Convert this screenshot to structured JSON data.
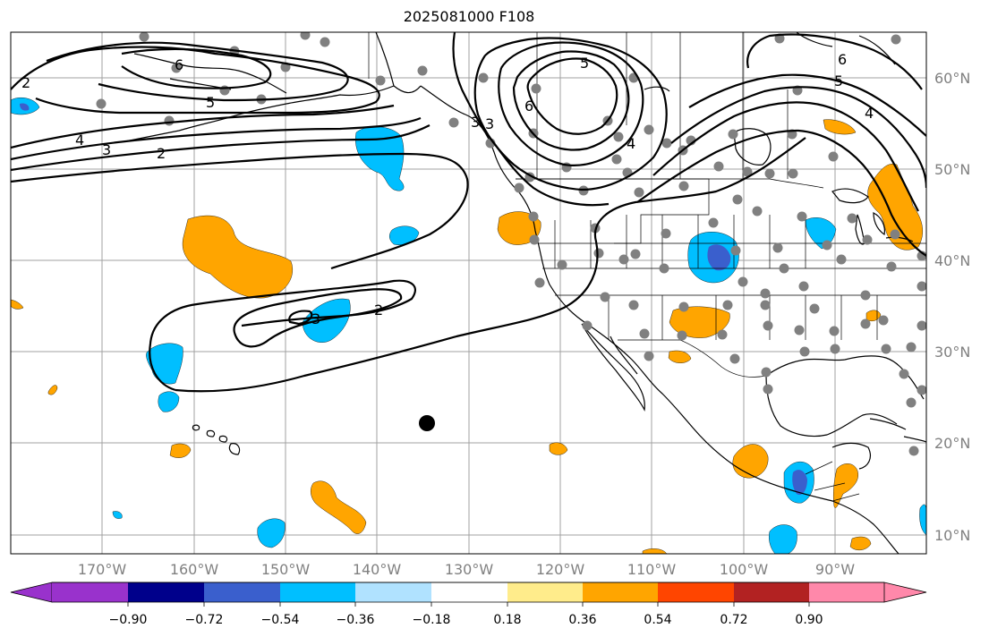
{
  "title": "2025081000 F108",
  "lon_labels": [
    "170°W",
    "160°W",
    "150°W",
    "140°W",
    "130°W",
    "120°W",
    "110°W",
    "100°W",
    "90°W"
  ],
  "lat_labels": [
    "60°N",
    "50°N",
    "40°N",
    "30°N",
    "20°N",
    "10°N"
  ],
  "colorbar": {
    "tick_labels": [
      "−0.90",
      "−0.72",
      "−0.54",
      "−0.36",
      "−0.18",
      "0.18",
      "0.36",
      "0.54",
      "0.72",
      "0.90"
    ],
    "colors": [
      "#9932cc",
      "#00008b",
      "#3a5fcd",
      "#00bfff",
      "#b0e2ff",
      "#ffffff",
      "#ffec8b",
      "#ffa500",
      "#ff4500",
      "#b22222",
      "#ff88aa"
    ]
  },
  "contour_labels": [
    "6",
    "5",
    "4",
    "3",
    "2",
    "3",
    "6",
    "5",
    "4",
    "3",
    "2",
    "2",
    "3",
    "6",
    "5",
    "4"
  ],
  "colors": {
    "positive_anomaly": "#ffa500",
    "negative_anomaly": "#00bfff",
    "strong_negative": "#3a5fcd",
    "station_dot": "#808080",
    "marker": "#000000",
    "grid": "#a0a0a0"
  }
}
